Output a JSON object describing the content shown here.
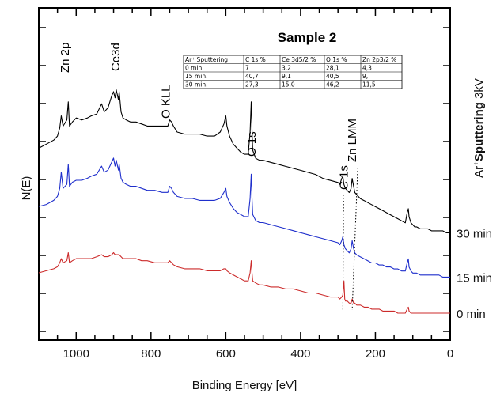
{
  "chart_data": {
    "type": "line",
    "title": "Sample 2",
    "xlabel": "Binding Energy [eV]",
    "ylabel": "N(E)",
    "xlim": [
      1100,
      0
    ],
    "x_ticks": [
      "1000",
      "800",
      "600",
      "400",
      "200",
      "0"
    ],
    "x_tick_values": [
      1000,
      800,
      600,
      400,
      200,
      0
    ],
    "y_unit": "arb. units (offset)",
    "grid": false,
    "side_label": {
      "main": "Ar",
      "sup": "+",
      "bold": "Sputtering",
      "suffix": " 3kV"
    },
    "peak_labels": [
      {
        "text": "Zn 2p",
        "be": 1030
      },
      {
        "text": "Ce3d",
        "be": 895
      },
      {
        "text": "O KLL",
        "be": 760
      },
      {
        "text": "O 1s",
        "be": 531
      },
      {
        "text": "C 1s",
        "be": 285
      },
      {
        "text": "Zn LMM",
        "be": 262
      }
    ],
    "series": [
      {
        "name": "30 min",
        "color": "#000000",
        "x": [
          1100,
          1080,
          1060,
          1050,
          1044,
          1040,
          1035,
          1025,
          1021,
          1018,
          1010,
          1000,
          985,
          970,
          960,
          945,
          932,
          925,
          915,
          905,
          900,
          896,
          893,
          887,
          885,
          880,
          875,
          866,
          855,
          840,
          825,
          810,
          790,
          770,
          755,
          750,
          745,
          740,
          730,
          710,
          690,
          670,
          650,
          630,
          615,
          605,
          600,
          597,
          590,
          580,
          570,
          560,
          550,
          540,
          535,
          532,
          530,
          528,
          520,
          510,
          500,
          480,
          460,
          440,
          420,
          400,
          380,
          360,
          340,
          320,
          300,
          295,
          290,
          287,
          284,
          282,
          280,
          275,
          270,
          265,
          262,
          258,
          255,
          250,
          240,
          230,
          220,
          210,
          200,
          190,
          180,
          170,
          160,
          150,
          140,
          130,
          120,
          115,
          112,
          110,
          105,
          100,
          95,
          90,
          80,
          70,
          60,
          50,
          40,
          30,
          20,
          10,
          0
        ],
        "y": [
          52,
          54,
          56,
          58,
          62,
          68,
          63,
          66,
          75,
          63,
          65,
          67,
          66,
          67,
          68,
          69,
          74,
          70,
          72,
          78,
          80,
          77,
          81,
          76,
          80,
          70,
          67,
          66,
          65,
          65,
          64,
          63,
          63,
          63,
          63,
          66,
          65,
          63,
          60,
          59,
          59,
          59,
          58,
          58,
          60,
          64,
          68,
          63,
          58,
          54,
          52,
          50,
          49,
          49,
          60,
          75,
          61,
          51,
          47,
          46,
          46,
          45,
          44,
          43,
          42,
          41,
          40,
          39,
          37,
          36,
          35,
          34,
          37,
          38,
          34,
          33,
          32,
          31,
          30,
          32,
          37,
          33,
          30,
          29,
          27,
          26,
          25,
          24,
          23,
          22,
          21,
          20,
          19,
          18,
          17,
          16,
          15,
          20,
          22,
          18,
          15,
          14,
          13,
          13,
          12,
          12,
          12,
          11,
          11,
          11,
          11,
          10,
          10
        ]
      },
      {
        "name": "15 min",
        "color": "#1f2fcc",
        "x": [
          1100,
          1080,
          1060,
          1050,
          1044,
          1040,
          1035,
          1025,
          1021,
          1018,
          1010,
          1000,
          985,
          970,
          960,
          945,
          932,
          925,
          915,
          905,
          900,
          896,
          893,
          887,
          885,
          880,
          875,
          866,
          855,
          840,
          825,
          810,
          790,
          770,
          755,
          750,
          745,
          740,
          730,
          710,
          690,
          670,
          650,
          630,
          615,
          605,
          600,
          597,
          590,
          580,
          570,
          560,
          550,
          540,
          535,
          532,
          530,
          528,
          520,
          510,
          500,
          480,
          460,
          440,
          420,
          400,
          380,
          360,
          340,
          320,
          300,
          295,
          290,
          287,
          284,
          282,
          280,
          275,
          270,
          265,
          262,
          258,
          255,
          250,
          240,
          230,
          220,
          210,
          200,
          190,
          180,
          170,
          160,
          150,
          140,
          130,
          120,
          115,
          112,
          110,
          105,
          100,
          95,
          90,
          80,
          70,
          60,
          50,
          40,
          30,
          20,
          10,
          0
        ],
        "y": [
          38,
          39,
          41,
          43,
          47,
          55,
          47,
          49,
          59,
          48,
          50,
          51,
          51,
          52,
          53,
          54,
          58,
          55,
          56,
          60,
          62,
          58,
          61,
          56,
          59,
          52,
          50,
          49,
          48,
          48,
          47,
          46,
          46,
          45,
          45,
          48,
          47,
          45,
          43,
          42,
          42,
          41,
          41,
          41,
          42,
          45,
          47,
          43,
          40,
          37,
          35,
          34,
          33,
          33,
          42,
          54,
          42,
          34,
          31,
          30,
          30,
          29,
          28,
          27,
          26,
          25,
          24,
          23,
          22,
          21,
          20,
          19,
          21,
          23,
          19,
          18,
          17,
          16,
          15,
          17,
          21,
          17,
          15,
          14,
          13,
          12,
          11,
          10,
          10,
          9,
          9,
          8,
          8,
          7,
          7,
          6,
          6,
          10,
          12,
          8,
          6,
          5,
          5,
          5,
          4,
          4,
          4,
          4,
          4,
          4,
          3,
          3,
          3
        ]
      },
      {
        "name": "0 min",
        "color": "#cc2b2b",
        "x": [
          1100,
          1080,
          1060,
          1050,
          1044,
          1040,
          1035,
          1025,
          1021,
          1018,
          1010,
          1000,
          985,
          970,
          960,
          945,
          932,
          925,
          915,
          905,
          900,
          896,
          893,
          887,
          885,
          880,
          875,
          866,
          855,
          840,
          825,
          810,
          790,
          770,
          755,
          750,
          745,
          740,
          730,
          710,
          690,
          670,
          650,
          630,
          615,
          605,
          600,
          597,
          590,
          580,
          570,
          560,
          550,
          540,
          535,
          532,
          530,
          528,
          520,
          510,
          500,
          480,
          460,
          440,
          420,
          400,
          380,
          360,
          340,
          320,
          300,
          295,
          290,
          287,
          284,
          282,
          280,
          275,
          270,
          265,
          262,
          258,
          255,
          250,
          240,
          230,
          220,
          210,
          200,
          190,
          180,
          170,
          160,
          150,
          140,
          130,
          120,
          115,
          112,
          110,
          105,
          100,
          95,
          90,
          80,
          70,
          60,
          50,
          40,
          30,
          20,
          10,
          0
        ],
        "y": [
          20,
          21,
          22,
          23,
          25,
          27,
          25,
          26,
          30,
          25,
          26,
          27,
          27,
          27,
          27,
          28,
          29,
          28,
          28,
          29,
          30,
          29,
          29,
          29,
          29,
          28,
          27,
          27,
          27,
          27,
          26,
          26,
          25,
          25,
          25,
          26,
          25,
          24,
          23,
          22,
          22,
          22,
          21,
          21,
          21,
          22,
          22,
          21,
          20,
          19,
          18,
          17,
          16,
          16,
          20,
          26,
          20,
          16,
          15,
          14,
          14,
          13,
          13,
          12,
          12,
          11,
          10,
          10,
          9,
          8,
          8,
          7,
          8,
          9,
          16,
          7,
          6,
          6,
          5,
          5,
          7,
          5,
          5,
          4,
          4,
          3,
          3,
          2,
          2,
          2,
          1,
          1,
          1,
          1,
          0,
          0,
          0,
          2,
          3,
          1,
          0,
          0,
          0,
          0,
          0,
          0,
          0,
          0,
          0,
          0,
          0,
          0,
          0
        ]
      }
    ],
    "table": {
      "headers": [
        "Ar⁺ Sputtering",
        "C 1s %",
        "Ce 3d5/2 %",
        "O 1s %",
        "Zn 2p3/2 %"
      ],
      "rows": [
        [
          "0 min.",
          "7",
          "3,2",
          "28,1",
          "4,3"
        ],
        [
          "15 min.",
          "40,7",
          "9,1",
          "40,5",
          "9,"
        ],
        [
          "30 min.",
          "27,3",
          "15,0",
          "46,2",
          "11,5"
        ]
      ]
    }
  }
}
